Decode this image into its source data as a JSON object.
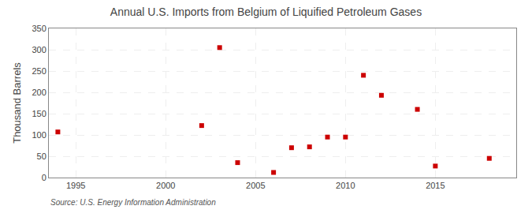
{
  "chart_data": {
    "type": "scatter",
    "title": "Annual U.S. Imports from Belgium of Liquified Petroleum Gases",
    "ylabel": "Thousand Barrels",
    "annotations": [
      "Source: U.S. Energy Information Administration"
    ],
    "x": [
      1994,
      2002,
      2003,
      2004,
      2006,
      2007,
      2008,
      2009,
      2010,
      2011,
      2012,
      2014,
      2015,
      2018
    ],
    "values": [
      107,
      122,
      305,
      35,
      12,
      70,
      72,
      95,
      95,
      240,
      193,
      160,
      27,
      45
    ],
    "color": "#cc0000",
    "marker": "square",
    "xlim": [
      1993.5,
      2019.5
    ],
    "ylim": [
      0,
      350
    ],
    "xticks": [
      1995,
      2000,
      2005,
      2010,
      2015
    ],
    "yticks": [
      0,
      50,
      100,
      150,
      200,
      250,
      300,
      350
    ],
    "grid": true
  }
}
